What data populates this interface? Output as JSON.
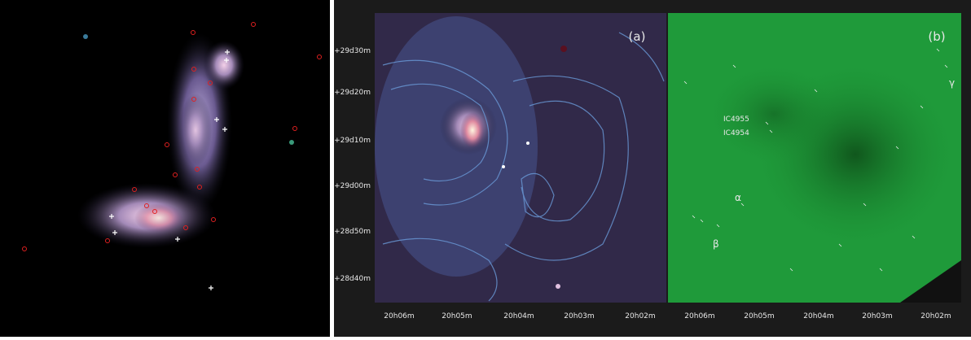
{
  "panels": [
    {
      "label": "(a)",
      "annotations": []
    },
    {
      "label": "(b)",
      "annotations": [
        "IC4955",
        "IC4954",
        "α",
        "β",
        "γ"
      ]
    }
  ],
  "y_axis": {
    "ticks": [
      "+29d30m",
      "+29d20m",
      "+29d10m",
      "+29d00m",
      "+28d50m",
      "+28d40m"
    ]
  },
  "x_axis": {
    "ticks": [
      "20h06m",
      "20h05m",
      "20h04m",
      "20h03m",
      "20h02m"
    ]
  }
}
